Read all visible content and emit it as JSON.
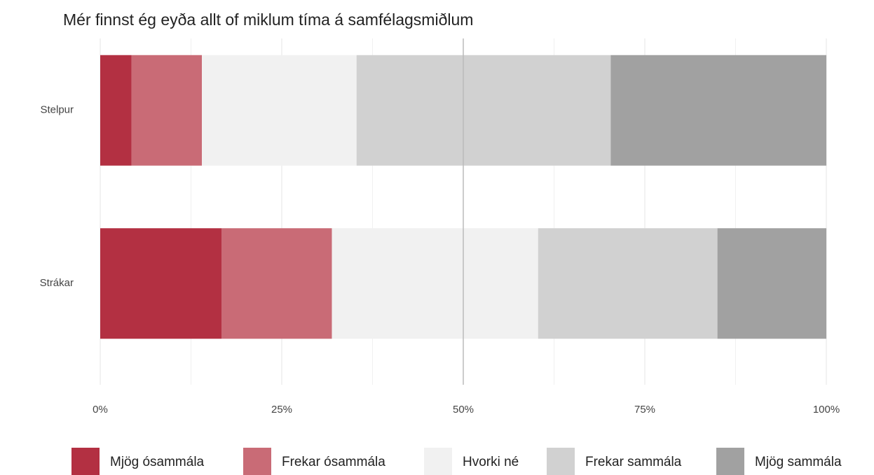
{
  "chart_data": {
    "type": "stacked_barh",
    "title": "Mér finnst ég eyða allt of miklum tíma á samfélagsmiðlum",
    "categories": [
      "Stelpur",
      "Strákar"
    ],
    "series": [
      {
        "name": "Mjög ósammála",
        "color": "#b33042",
        "values": [
          4.3,
          16.7
        ]
      },
      {
        "name": "Frekar ósammála",
        "color": "#c96b76",
        "values": [
          9.7,
          15.2
        ]
      },
      {
        "name": "Hvorki né",
        "color": "#f1f1f1",
        "values": [
          21.3,
          28.4
        ]
      },
      {
        "name": "Frekar sammála",
        "color": "#d1d1d1",
        "values": [
          35.0,
          24.7
        ]
      },
      {
        "name": "Mjög sammála",
        "color": "#a1a1a1",
        "values": [
          29.7,
          15.0
        ]
      }
    ],
    "xlim": [
      0,
      100
    ],
    "xticks": [
      {
        "value": 0,
        "label": "0%"
      },
      {
        "value": 25,
        "label": "25%"
      },
      {
        "value": 50,
        "label": "50%"
      },
      {
        "value": 75,
        "label": "75%"
      },
      {
        "value": 100,
        "label": "100%"
      }
    ],
    "minor_xticks": [
      12.5,
      37.5,
      62.5,
      87.5
    ],
    "reference_line": 50,
    "grid": true,
    "legend": "bottom"
  }
}
